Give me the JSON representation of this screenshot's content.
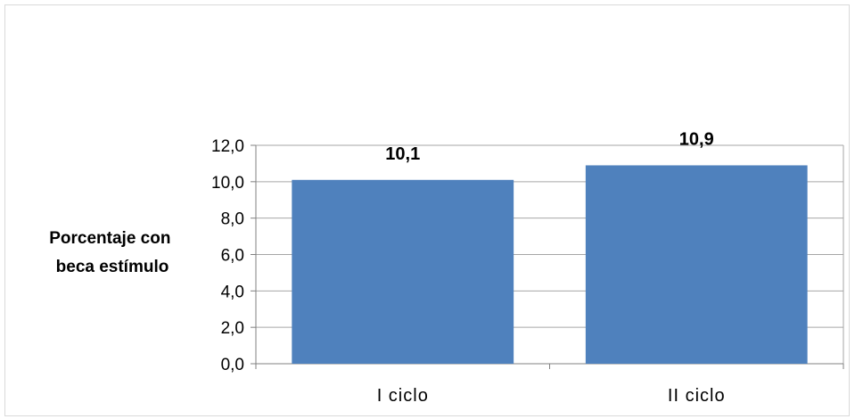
{
  "chart_data": {
    "type": "bar",
    "categories": [
      "I ciclo",
      "II ciclo"
    ],
    "values": [
      10.1,
      10.9
    ],
    "data_labels": [
      "10,1",
      "10,9"
    ],
    "title": "",
    "xlabel": "",
    "ylabel_lines": [
      "Porcentaje con",
      "beca estímulo"
    ],
    "ylim": [
      0,
      12
    ],
    "yticks": [
      0,
      2,
      4,
      6,
      8,
      10,
      12
    ],
    "ytick_labels": [
      "0,0",
      "2,0",
      "4,0",
      "6,0",
      "8,0",
      "10,0",
      "12,0"
    ],
    "grid": true,
    "legend": "none",
    "bar_color": "#4f81bd",
    "grid_color": "#a6a6a6"
  }
}
